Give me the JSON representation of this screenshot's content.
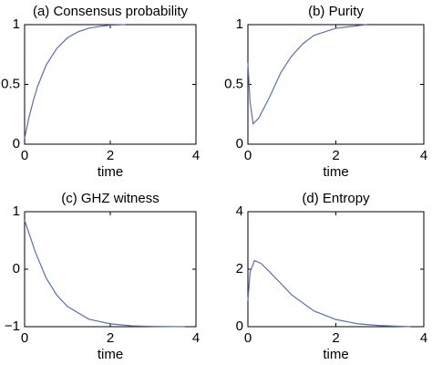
{
  "chart_data": [
    {
      "type": "line",
      "title": "(a) Consensus probability",
      "xlabel": "time",
      "x": [
        0,
        0.1,
        0.2,
        0.3,
        0.5,
        0.75,
        1,
        1.25,
        1.5,
        1.75,
        2,
        2.35
      ],
      "series": [
        {
          "color": "#5b6fae",
          "values": [
            0.05,
            0.22,
            0.36,
            0.48,
            0.66,
            0.8,
            0.89,
            0.94,
            0.97,
            0.985,
            0.995,
            1
          ]
        }
      ],
      "xlim": [
        0,
        4
      ],
      "xticks": [
        0,
        2,
        4
      ],
      "ylim": [
        0,
        1
      ],
      "yticks": [
        0,
        0.5,
        1
      ]
    },
    {
      "type": "line",
      "title": "(b)  Purity",
      "xlabel": "time",
      "x": [
        0,
        0.05,
        0.12,
        0.25,
        0.5,
        0.75,
        1,
        1.25,
        1.5,
        2,
        2.7
      ],
      "series": [
        {
          "color": "#5b6fae",
          "values": [
            0.68,
            0.35,
            0.17,
            0.22,
            0.4,
            0.6,
            0.74,
            0.84,
            0.91,
            0.97,
            1
          ]
        }
      ],
      "xlim": [
        0,
        4
      ],
      "xticks": [
        0,
        2,
        4
      ],
      "ylim": [
        0,
        1
      ],
      "yticks": [
        0,
        0.5,
        1
      ]
    },
    {
      "type": "line",
      "title": "(c) GHZ witness",
      "xlabel": "time",
      "x": [
        0,
        0.25,
        0.5,
        0.75,
        1,
        1.5,
        2,
        2.5,
        3,
        3.75
      ],
      "series": [
        {
          "color": "#5b6fae",
          "values": [
            0.85,
            0.3,
            -0.15,
            -0.45,
            -0.65,
            -0.87,
            -0.95,
            -0.985,
            -0.995,
            -1
          ]
        }
      ],
      "xlim": [
        0,
        4
      ],
      "xticks": [
        0,
        2,
        4
      ],
      "ylim": [
        -1,
        1
      ],
      "yticks": [
        {
          "value": -1,
          "label": "−1"
        },
        0,
        1
      ]
    },
    {
      "type": "line",
      "title": "(d)  Entropy",
      "xlabel": "time",
      "x": [
        0,
        0.05,
        0.15,
        0.3,
        0.5,
        0.75,
        1,
        1.5,
        2,
        2.5,
        3,
        3.7
      ],
      "series": [
        {
          "color": "#5b6fae",
          "values": [
            0.9,
            1.9,
            2.3,
            2.2,
            1.9,
            1.5,
            1.1,
            0.55,
            0.25,
            0.1,
            0.04,
            0
          ]
        }
      ],
      "xlim": [
        0,
        4
      ],
      "xticks": [
        0,
        2,
        4
      ],
      "ylim": [
        0,
        4
      ],
      "yticks": [
        0,
        2,
        4
      ]
    }
  ]
}
